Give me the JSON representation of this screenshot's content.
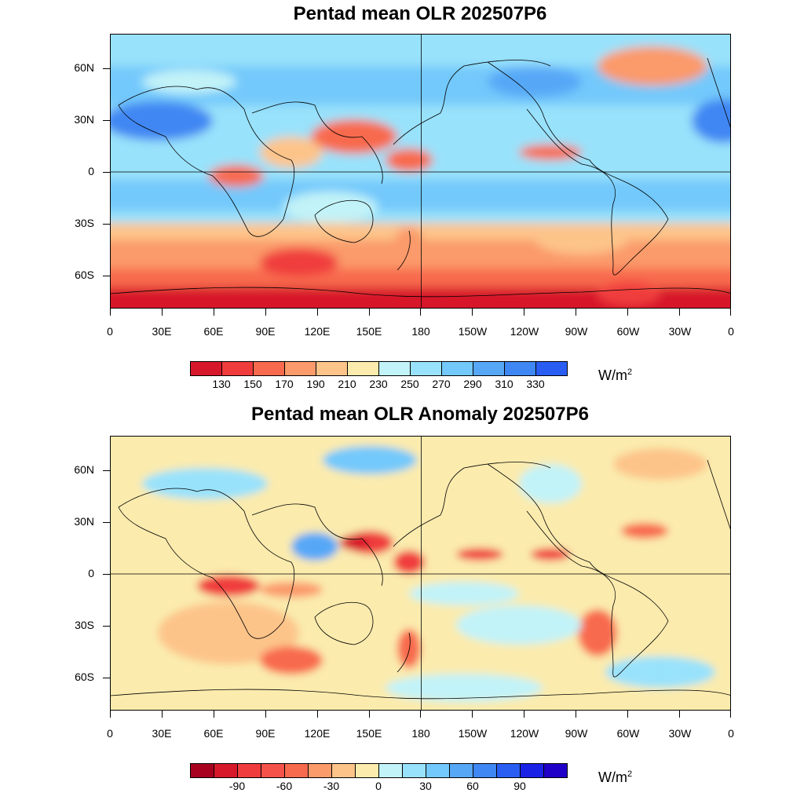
{
  "panels": [
    {
      "title": "Pentad mean OLR 202507P6",
      "y_ticks": [
        "60N",
        "30N",
        "0",
        "30S",
        "60S"
      ],
      "x_ticks": [
        "0",
        "30E",
        "60E",
        "90E",
        "120E",
        "150E",
        "180",
        "150W",
        "120W",
        "90W",
        "60W",
        "30W",
        "0"
      ],
      "colorbar": {
        "colors": [
          "#d7182a",
          "#f03c3c",
          "#f86a4e",
          "#fb9a6b",
          "#fdc48a",
          "#fbebad",
          "#c2f3f8",
          "#99e2fb",
          "#73c9fb",
          "#56a8f7",
          "#3f87f3",
          "#2a5ef3"
        ],
        "labels": [
          "130",
          "150",
          "170",
          "190",
          "210",
          "230",
          "250",
          "270",
          "290",
          "310",
          "330"
        ]
      },
      "units": "W/m",
      "units_sup": "2"
    },
    {
      "title": "Pentad mean OLR Anomaly 202507P6",
      "y_ticks": [
        "60N",
        "30N",
        "0",
        "30S",
        "60S"
      ],
      "x_ticks": [
        "0",
        "30E",
        "60E",
        "90E",
        "120E",
        "150E",
        "180",
        "150W",
        "120W",
        "90W",
        "60W",
        "30W",
        "0"
      ],
      "colorbar": {
        "colors": [
          "#a8001f",
          "#d7182a",
          "#f03c3c",
          "#f5524a",
          "#f86a4e",
          "#fb9a6b",
          "#fdc48a",
          "#fbebad",
          "#c2f3f8",
          "#99e2fb",
          "#73c9fb",
          "#56a8f7",
          "#3f87f3",
          "#2a5ef3",
          "#1a22e6",
          "#2000c8"
        ],
        "labels": [
          "-90",
          "-60",
          "-30",
          "0",
          "30",
          "60",
          "90"
        ]
      },
      "units": "W/m",
      "units_sup": "2"
    }
  ]
}
